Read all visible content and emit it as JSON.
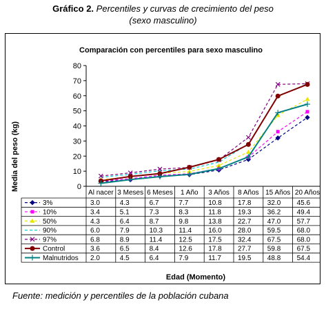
{
  "figure": {
    "label": "Gráfico 2.",
    "caption_line1": "Percentiles y curvas de crecimiento del peso",
    "caption_line2": "(sexo masculino)",
    "source": "Fuente: medición y percentiles de la población cubana"
  },
  "chart_data": {
    "type": "line",
    "title": "Comparación con percentiles para sexo masculino",
    "xlabel": "Edad (Momento)",
    "ylabel": "Media del peso (kg)",
    "ylim": [
      0,
      80
    ],
    "yticks": [
      0,
      10,
      20,
      30,
      40,
      50,
      60,
      70,
      80
    ],
    "grid": false,
    "legend": "table-below",
    "categories": [
      "Al nacer",
      "3 Meses",
      "6 Meses",
      "1 Año",
      "3 Años",
      "8 Años",
      "15 Años",
      "20 Años"
    ],
    "series": [
      {
        "name": "3%",
        "values": [
          3.0,
          4.3,
          6.7,
          7.7,
          10.8,
          17.8,
          32.0,
          45.6
        ],
        "color": "#000080",
        "dash": "4,3",
        "marker": "diamond"
      },
      {
        "name": "10%",
        "values": [
          3.4,
          5.1,
          7.3,
          8.3,
          11.8,
          19.3,
          36.2,
          49.4
        ],
        "color": "#ff00ff",
        "dash": "4,3",
        "marker": "square"
      },
      {
        "name": "50%",
        "values": [
          4.3,
          6.4,
          8.7,
          9.8,
          13.8,
          22.7,
          47.0,
          57.7
        ],
        "color": "#e6e600",
        "dash": "4,3",
        "marker": "triangle"
      },
      {
        "name": "90%",
        "values": [
          6.0,
          7.9,
          10.3,
          11.4,
          16.0,
          28.0,
          59.5,
          68.0
        ],
        "color": "#00cccc",
        "dash": "4,3",
        "marker": "none"
      },
      {
        "name": "97%",
        "values": [
          6.8,
          8.9,
          11.4,
          12.5,
          17.5,
          32.4,
          67.5,
          68.0
        ],
        "color": "#800080",
        "dash": "4,3",
        "marker": "x"
      },
      {
        "name": "Control",
        "values": [
          3.6,
          6.5,
          8.4,
          12.6,
          17.8,
          27.7,
          59.8,
          67.5
        ],
        "color": "#800000",
        "dash": "",
        "marker": "circle"
      },
      {
        "name": "Malnutridos",
        "values": [
          2.0,
          4.5,
          6.4,
          7.9,
          11.7,
          19.5,
          48.8,
          54.4
        ],
        "color": "#008080",
        "dash": "",
        "marker": "plus"
      }
    ]
  }
}
